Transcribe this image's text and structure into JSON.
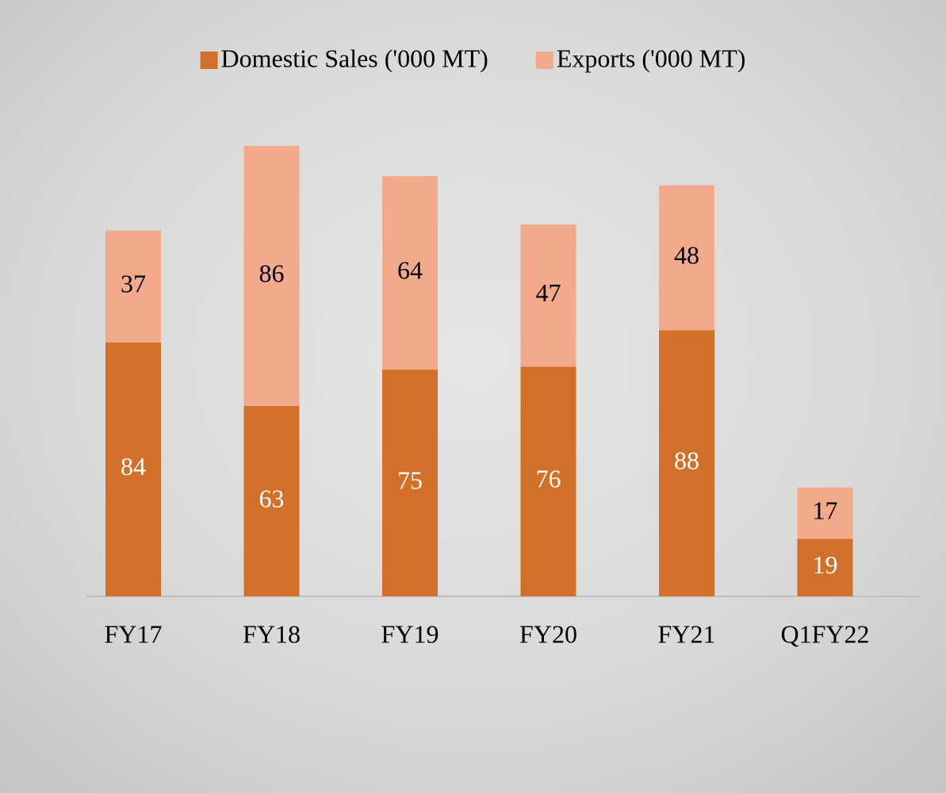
{
  "chart_data": {
    "type": "stacked-bar",
    "categories": [
      "FY17",
      "FY18",
      "FY19",
      "FY20",
      "FY21",
      "Q1FY22"
    ],
    "series": [
      {
        "name": "Domestic Sales ('000 MT)",
        "color": "#d2702a",
        "values": [
          84,
          63,
          75,
          76,
          88,
          19
        ]
      },
      {
        "name": "Exports ('000 MT)",
        "color": "#f2a98c",
        "values": [
          37,
          86,
          64,
          47,
          48,
          17
        ]
      }
    ],
    "legend": "top"
  }
}
